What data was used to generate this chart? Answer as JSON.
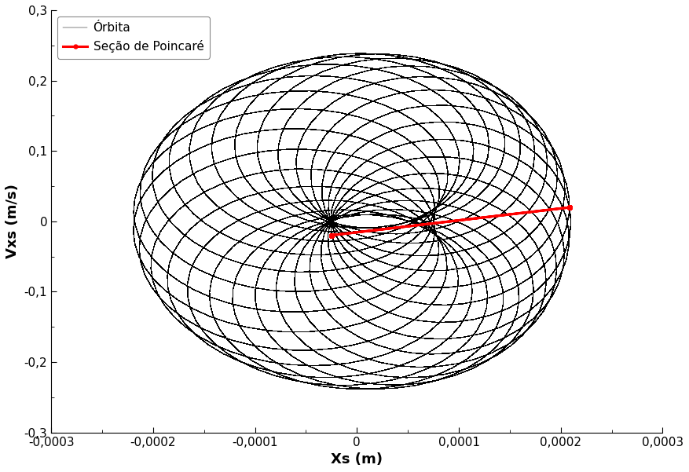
{
  "xlim": [
    -0.0003,
    0.0003
  ],
  "ylim": [
    -0.3,
    0.3
  ],
  "xlabel": "Xs (m)",
  "ylabel": "Vxs (m/s)",
  "xticks": [
    -0.0003,
    -0.0002,
    -0.0001,
    0,
    0.0001,
    0.0002,
    0.0003
  ],
  "xtick_labels": [
    "-0,0003",
    "-0,0002",
    "-0,0001",
    "0",
    "0,0001",
    "0,0002",
    "0,0003"
  ],
  "yticks": [
    -0.3,
    -0.2,
    -0.1,
    0.0,
    0.1,
    0.2,
    0.3
  ],
  "ytick_labels": [
    "-0,3",
    "-0,2",
    "-0,1",
    "0",
    "0,1",
    "0,2",
    "0,3"
  ],
  "orbit_color": "#000000",
  "poincare_color": "#ff0000",
  "legend_orbit": "Órbita",
  "legend_poincare": "Seção de Poincaré",
  "background_color": "#ffffff",
  "orbit_linewidth": 0.35,
  "poincare_linewidth": 2.2,
  "poincare_markersize": 3.5
}
